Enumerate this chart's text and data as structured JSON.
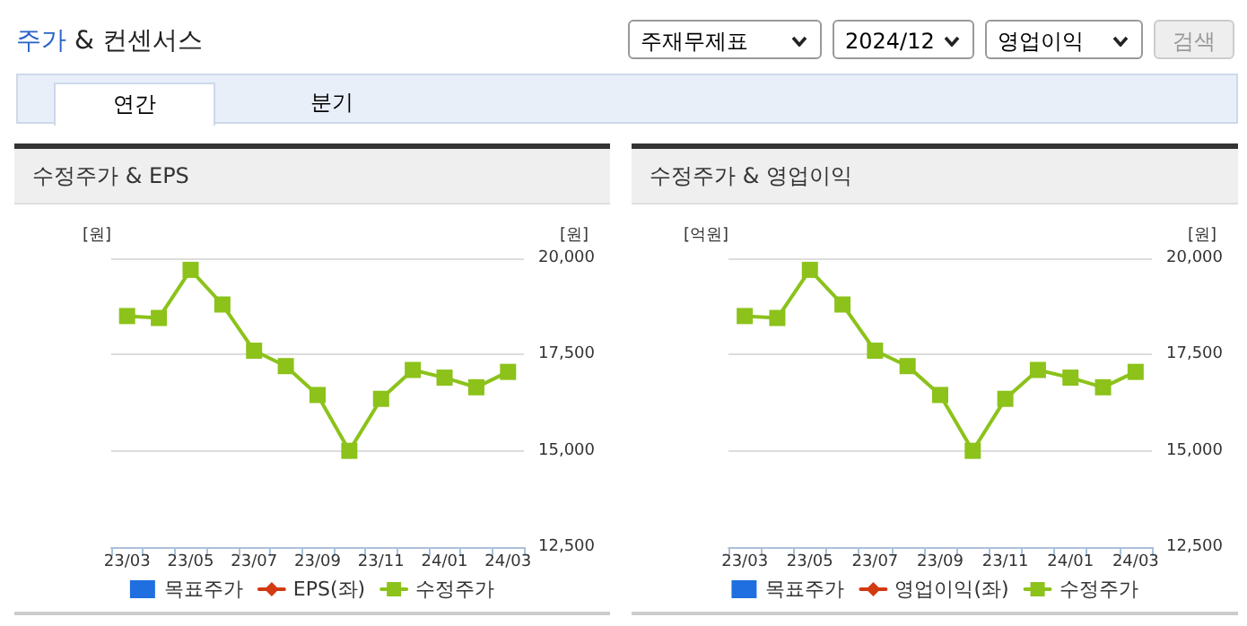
{
  "chart_data": [
    {
      "type": "other",
      "title": "주가 & 컨센서스",
      "annotations": [
        "주재무제표",
        "2024/12",
        "영업이익",
        "검색",
        "연간",
        "분기"
      ]
    },
    {
      "type": "line",
      "title": "수정주가 & EPS",
      "ylabel": "[원]",
      "y2label": "[원]",
      "categories": [
        "23/03",
        null,
        "23/05",
        null,
        "23/07",
        null,
        "23/09",
        null,
        "23/11",
        null,
        "24/01",
        null,
        "24/03"
      ],
      "y2lim": [
        12500,
        20000
      ],
      "y2ticks": [
        {
          "value": 12500,
          "label": "12,500"
        },
        {
          "value": 15000,
          "label": "15,000"
        },
        {
          "value": 17500,
          "label": "17,500"
        },
        {
          "value": 20000,
          "label": "20,000"
        }
      ],
      "grid": "y",
      "legend": "bottom",
      "series": [
        {
          "name": "목표주가",
          "type": "bar",
          "color": "#1f6fe0",
          "values": [
            null,
            null,
            null,
            null,
            null,
            null,
            null,
            null,
            null,
            null,
            null,
            null,
            null
          ]
        },
        {
          "name": "EPS(좌)",
          "type": "line",
          "marker": "diamond",
          "color": "#d23a10",
          "values": [
            null,
            null,
            null,
            null,
            null,
            null,
            null,
            null,
            null,
            null,
            null,
            null,
            null
          ]
        },
        {
          "name": "수정주가",
          "type": "line",
          "marker": "square",
          "axis": "y2",
          "color": "#8cc21a",
          "values": [
            18500,
            18450,
            19700,
            18800,
            17600,
            17200,
            16450,
            15000,
            16350,
            17100,
            16900,
            16650,
            17050
          ]
        }
      ]
    },
    {
      "type": "line",
      "title": "수정주가 & 영업이익",
      "ylabel": "[억원]",
      "y2label": "[원]",
      "categories": [
        "23/03",
        null,
        "23/05",
        null,
        "23/07",
        null,
        "23/09",
        null,
        "23/11",
        null,
        "24/01",
        null,
        "24/03"
      ],
      "y2lim": [
        12500,
        20000
      ],
      "y2ticks": [
        {
          "value": 12500,
          "label": "12,500"
        },
        {
          "value": 15000,
          "label": "15,000"
        },
        {
          "value": 17500,
          "label": "17,500"
        },
        {
          "value": 20000,
          "label": "20,000"
        }
      ],
      "grid": "y",
      "legend": "bottom",
      "series": [
        {
          "name": "목표주가",
          "type": "bar",
          "color": "#1f6fe0",
          "values": [
            null,
            null,
            null,
            null,
            null,
            null,
            null,
            null,
            null,
            null,
            null,
            null,
            null
          ]
        },
        {
          "name": "영업이익(좌)",
          "type": "line",
          "marker": "diamond",
          "color": "#d23a10",
          "values": [
            null,
            null,
            null,
            null,
            null,
            null,
            null,
            null,
            null,
            null,
            null,
            null,
            null
          ]
        },
        {
          "name": "수정주가",
          "type": "line",
          "marker": "square",
          "axis": "y2",
          "color": "#8cc21a",
          "values": [
            18500,
            18450,
            19700,
            18800,
            17600,
            17200,
            16450,
            15000,
            16350,
            17100,
            16900,
            16650,
            17050
          ]
        }
      ]
    }
  ]
}
